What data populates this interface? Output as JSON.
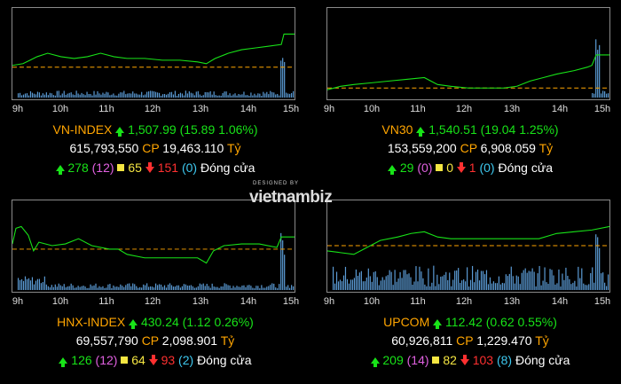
{
  "logo": {
    "designed_by": "DESIGNED BY",
    "brand": "vietnambiz"
  },
  "time_labels": [
    "9h",
    "10h",
    "11h",
    "12h",
    "13h",
    "14h",
    "15h"
  ],
  "panels": [
    {
      "name": "VN-INDEX",
      "value": "1,507.99",
      "change": "(15.89 1.06%)",
      "volume": "615,793,550",
      "cp": "CP",
      "turnover": "19,463.110",
      "unit": "Tỷ",
      "up": "278",
      "ceiling": "(12)",
      "ref": "65",
      "down": "151",
      "floor": "(0)",
      "status": "Đóng cửa"
    },
    {
      "name": "VN30",
      "value": "1,540.51",
      "change": "(19.04 1.25%)",
      "volume": "153,559,200",
      "cp": "CP",
      "turnover": "6,908.059",
      "unit": "Tỷ",
      "up": "29",
      "ceiling": "(0)",
      "ref": "0",
      "down": "1",
      "floor": "(0)",
      "status": "Đóng cửa"
    },
    {
      "name": "HNX-INDEX",
      "value": "430.24",
      "change": "(1.12 0.26%)",
      "volume": "69,557,790",
      "cp": "CP",
      "turnover": "2,098.901",
      "unit": "Tỷ",
      "up": "126",
      "ceiling": "(12)",
      "ref": "64",
      "down": "93",
      "floor": "(2)",
      "status": "Đóng cửa"
    },
    {
      "name": "UPCOM",
      "value": "112.42",
      "change": "(0.62 0.55%)",
      "volume": "60,926,811",
      "cp": "CP",
      "turnover": "1,229.470",
      "unit": "Tỷ",
      "up": "209",
      "ceiling": "(14)",
      "ref": "82",
      "down": "103",
      "floor": "(8)",
      "status": "Đóng cửa"
    }
  ],
  "colors": {
    "index_name": "#ffa500",
    "up": "#18e318",
    "ceiling": "#e060e0",
    "reference": "#f5e642",
    "down": "#ff3030",
    "floor": "#3ec8ef",
    "volume_bars": "#5b9bd5",
    "reference_line": "#ffa500"
  }
}
